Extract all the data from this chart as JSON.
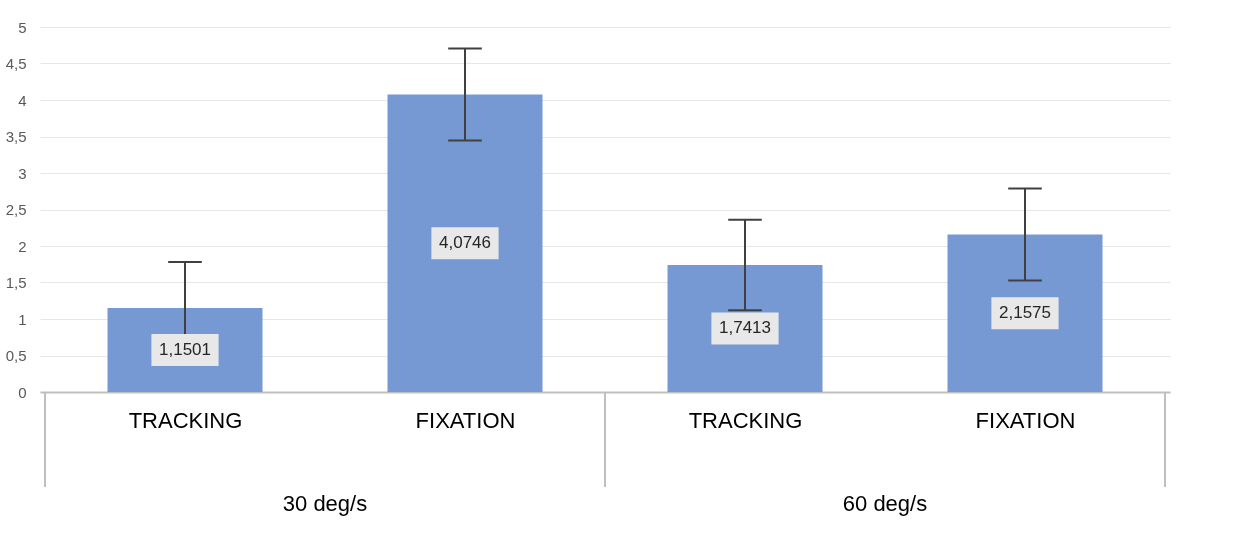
{
  "chart_data": {
    "type": "bar",
    "categories": [
      "TRACKING",
      "FIXATION",
      "TRACKING",
      "FIXATION"
    ],
    "values": [
      1.1501,
      4.0746,
      1.7413,
      2.1575
    ],
    "value_labels": [
      "1,1501",
      "4,0746",
      "1,7413",
      "2,1575"
    ],
    "errors": [
      0.63,
      0.63,
      0.62,
      0.63
    ],
    "color": "#7699d4",
    "ylim": [
      0,
      5
    ],
    "yticks": [
      0,
      {
        "value": 0.5,
        "label": "0,5"
      },
      1,
      {
        "value": 1.5,
        "label": "1,5"
      },
      2,
      {
        "value": 2.5,
        "label": "2,5"
      },
      3,
      {
        "value": 3.5,
        "label": "3,5"
      },
      4,
      {
        "value": 4.5,
        "label": "4,5"
      },
      5
    ],
    "grid": "y",
    "annotations": [
      "30 deg/s",
      "60 deg/s"
    ]
  }
}
